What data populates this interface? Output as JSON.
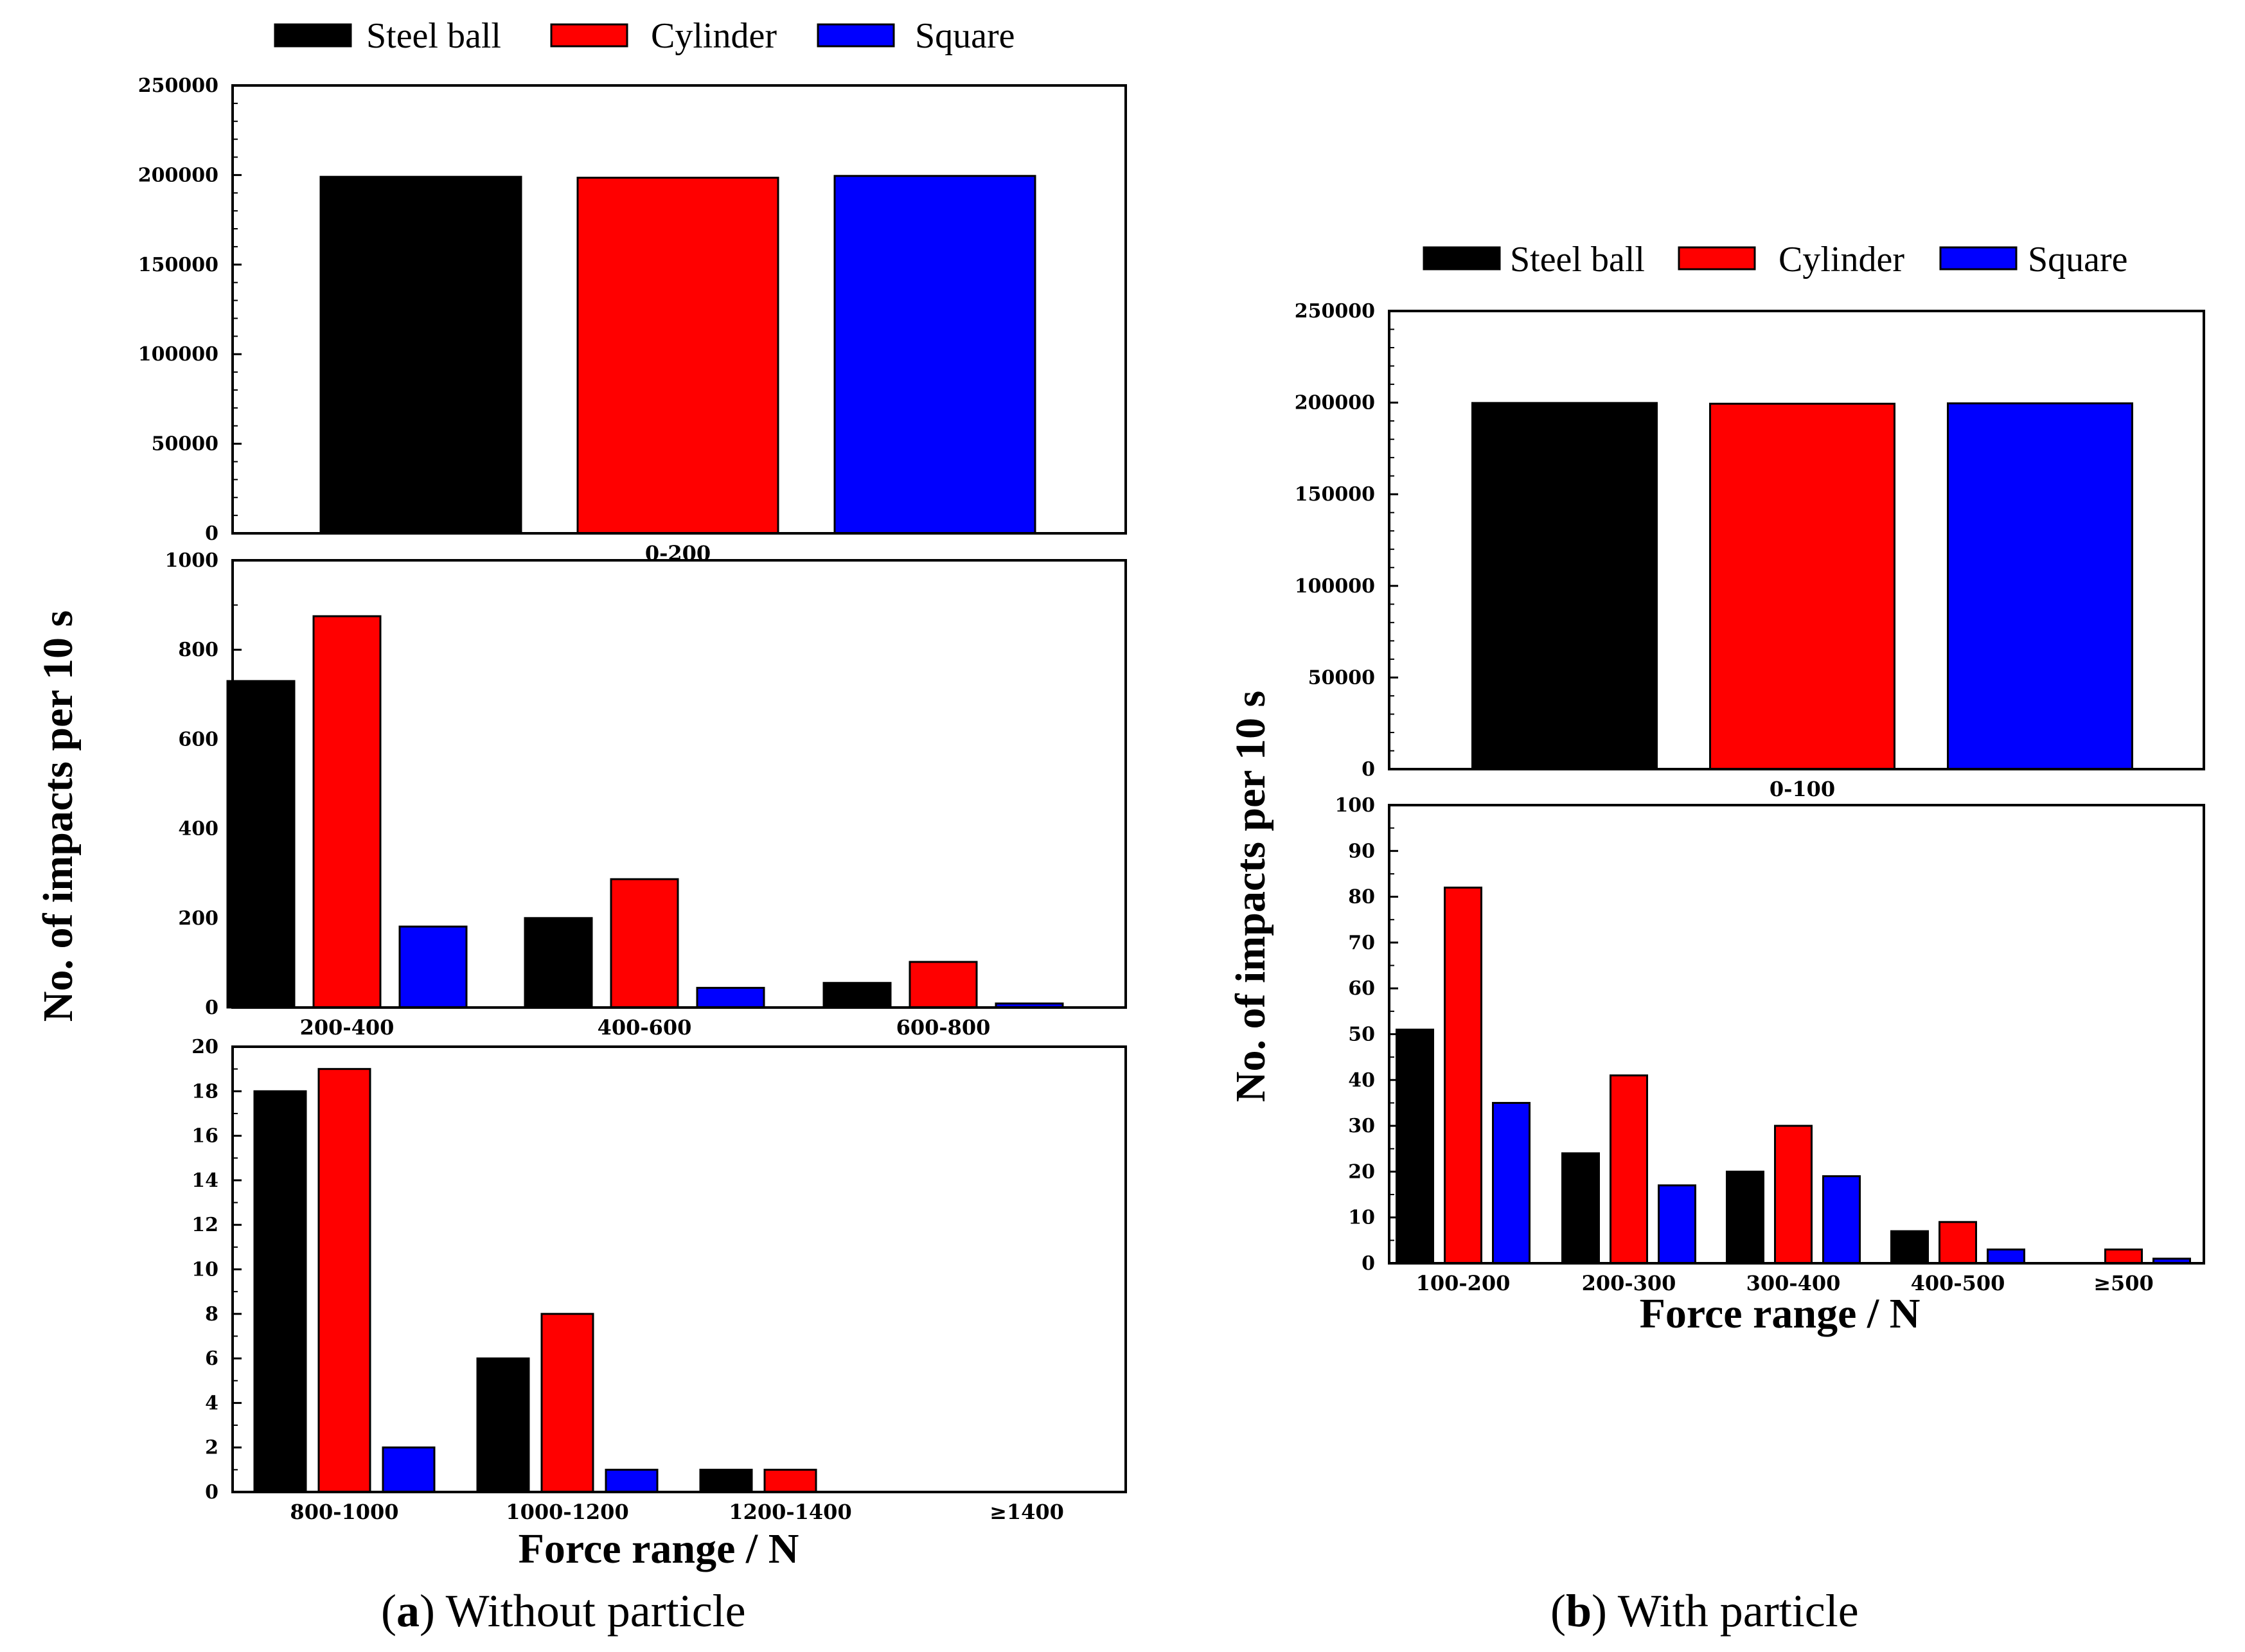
{
  "colors": {
    "steel": "#000000",
    "cylinder": "#ff0000",
    "square": "#0000ff"
  },
  "legend": [
    "Steel ball",
    "Cylinder",
    "Square"
  ],
  "captions": {
    "a": {
      "open": "(",
      "letter": "a",
      "rest": ") Without particle"
    },
    "b": {
      "open": "(",
      "letter": "b",
      "rest": ") With particle"
    }
  },
  "chart_data": [
    {
      "type": "bar",
      "panel": "a-top",
      "categories": [
        "0-200"
      ],
      "series": [
        {
          "name": "Steel ball",
          "values": [
            199000
          ]
        },
        {
          "name": "Cylinder",
          "values": [
            198500
          ]
        },
        {
          "name": "Square",
          "values": [
            199500
          ]
        }
      ],
      "ylim": [
        0,
        250000
      ],
      "yticks": [
        "0",
        "50000",
        "100000",
        "150000",
        "200000",
        "250000"
      ],
      "ylabel": "No. of impacts per 10 s",
      "xlabel": ""
    },
    {
      "type": "bar",
      "panel": "a-mid",
      "categories": [
        "200-400",
        "400-600",
        "600-800"
      ],
      "series": [
        {
          "name": "Steel ball",
          "values": [
            730,
            200,
            55
          ]
        },
        {
          "name": "Cylinder",
          "values": [
            875,
            287,
            102
          ]
        },
        {
          "name": "Square",
          "values": [
            181,
            44,
            9
          ]
        }
      ],
      "ylim": [
        0,
        1000
      ],
      "yticks": [
        "0",
        "200",
        "400",
        "600",
        "800",
        "1000"
      ]
    },
    {
      "type": "bar",
      "panel": "a-bot",
      "categories": [
        "800-1000",
        "1000-1200",
        "1200-1400",
        "≥1400"
      ],
      "series": [
        {
          "name": "Steel ball",
          "values": [
            18,
            6,
            1,
            0
          ]
        },
        {
          "name": "Cylinder",
          "values": [
            19,
            8,
            1,
            0
          ]
        },
        {
          "name": "Square",
          "values": [
            2,
            1,
            0,
            0
          ]
        }
      ],
      "ylim": [
        0,
        20
      ],
      "yticks": [
        "0",
        "2",
        "4",
        "6",
        "8",
        "10",
        "12",
        "14",
        "16",
        "18",
        "20"
      ],
      "xlabel": "Force range / N"
    },
    {
      "type": "bar",
      "panel": "b-top",
      "categories": [
        "0-100"
      ],
      "series": [
        {
          "name": "Steel ball",
          "values": [
            199800
          ]
        },
        {
          "name": "Cylinder",
          "values": [
            199400
          ]
        },
        {
          "name": "Square",
          "values": [
            199600
          ]
        }
      ],
      "ylim": [
        0,
        250000
      ],
      "yticks": [
        "0",
        "50000",
        "100000",
        "150000",
        "200000",
        "250000"
      ],
      "ylabel": "No. of impacts per 10 s"
    },
    {
      "type": "bar",
      "panel": "b-bot",
      "categories": [
        "100-200",
        "200-300",
        "300-400",
        "400-500",
        "≥500"
      ],
      "series": [
        {
          "name": "Steel ball",
          "values": [
            51,
            24,
            20,
            7,
            0
          ]
        },
        {
          "name": "Cylinder",
          "values": [
            82,
            41,
            30,
            9,
            3
          ]
        },
        {
          "name": "Square",
          "values": [
            35,
            17,
            19,
            3,
            1
          ]
        }
      ],
      "ylim": [
        0,
        100
      ],
      "yticks": [
        "0",
        "10",
        "20",
        "30",
        "40",
        "50",
        "60",
        "70",
        "80",
        "90",
        "100"
      ],
      "xlabel": "Force range / N"
    }
  ]
}
